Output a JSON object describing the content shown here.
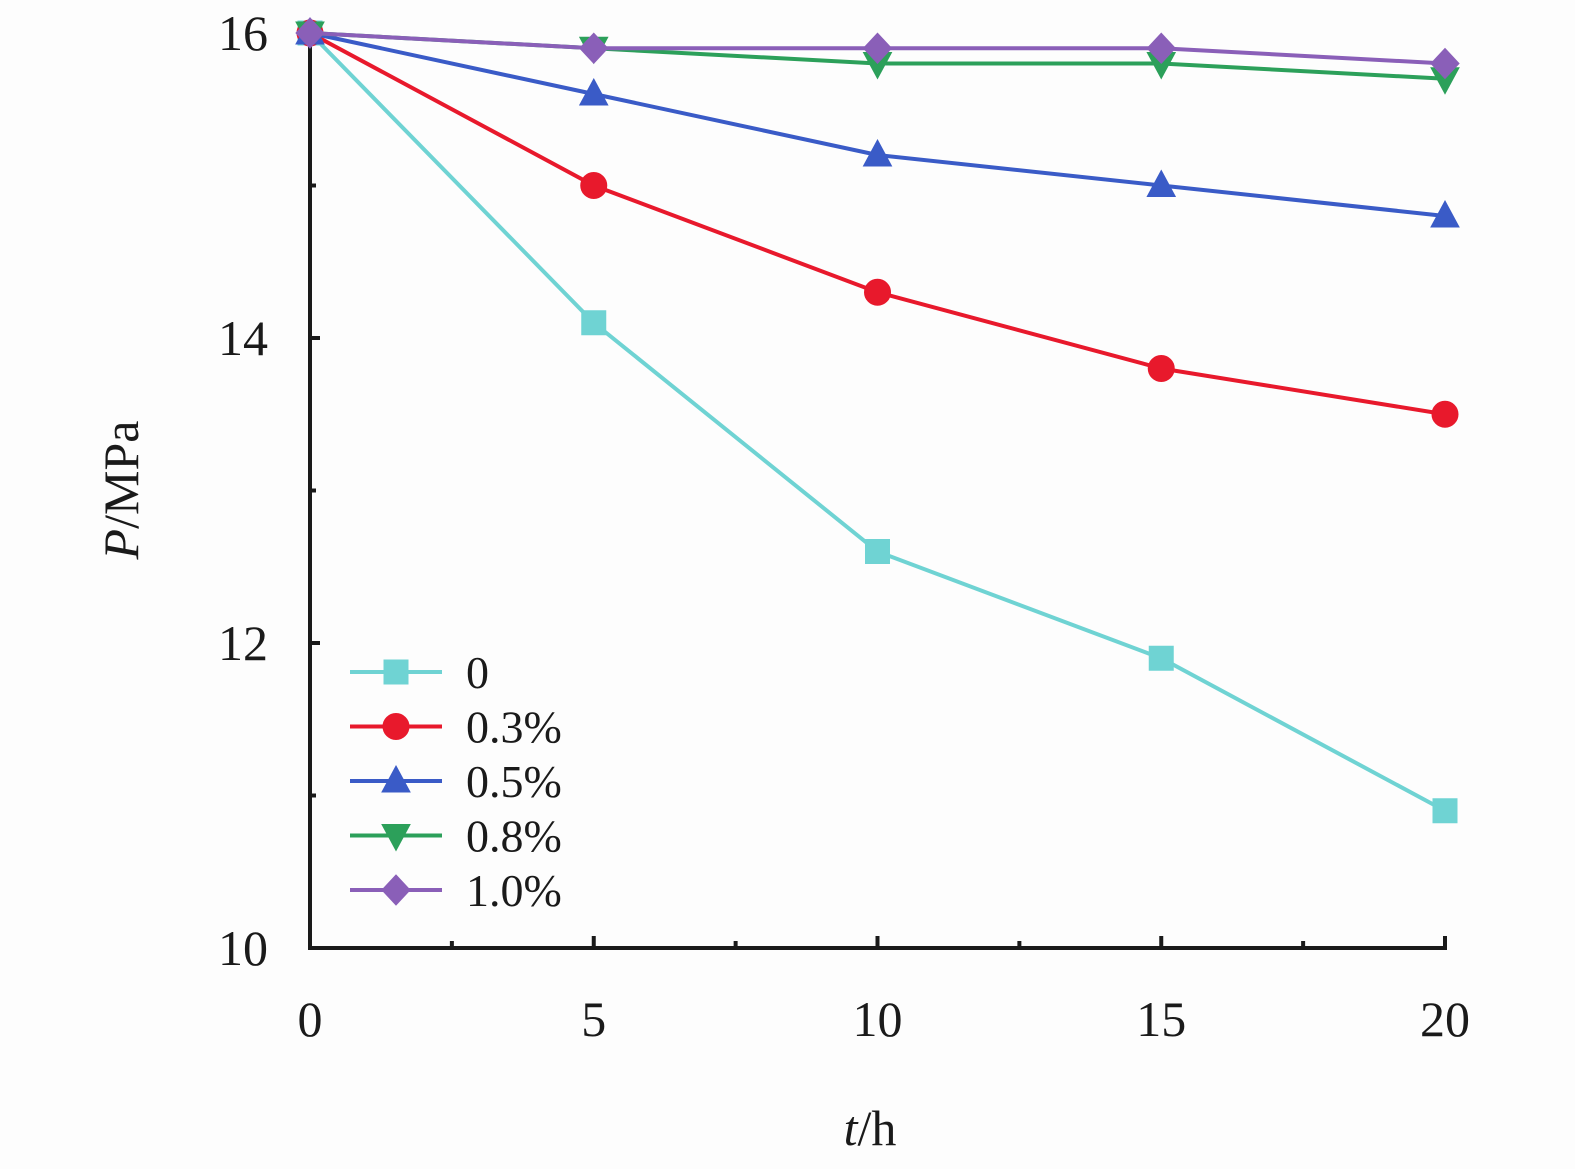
{
  "chart_data": {
    "type": "line",
    "xlabel_italic": "t",
    "xlabel_rest": "/h",
    "ylabel_italic": "P",
    "ylabel_rest": "/MPa",
    "xlim": [
      0,
      20
    ],
    "ylim": [
      10,
      16
    ],
    "xticks": [
      0,
      5,
      10,
      15,
      20
    ],
    "yticks": [
      10,
      12,
      14,
      16
    ],
    "x": [
      0,
      5,
      10,
      15,
      20
    ],
    "legend_position": "bottom-left",
    "series": [
      {
        "name": "0",
        "marker": "square",
        "color": "#6fd3d3",
        "values": [
          16.0,
          14.1,
          12.6,
          11.9,
          10.9
        ]
      },
      {
        "name": "0.3%",
        "marker": "circle",
        "color": "#e8192c",
        "values": [
          16.0,
          15.0,
          14.3,
          13.8,
          13.5
        ]
      },
      {
        "name": "0.5%",
        "marker": "triangle-up",
        "color": "#3a5bc7",
        "values": [
          16.0,
          15.6,
          15.2,
          15.0,
          14.8
        ]
      },
      {
        "name": "0.8%",
        "marker": "triangle-down",
        "color": "#2ca05a",
        "values": [
          16.0,
          15.9,
          15.8,
          15.8,
          15.7
        ]
      },
      {
        "name": "1.0%",
        "marker": "diamond",
        "color": "#8a5fb8",
        "values": [
          16.0,
          15.9,
          15.9,
          15.9,
          15.8
        ]
      }
    ]
  }
}
